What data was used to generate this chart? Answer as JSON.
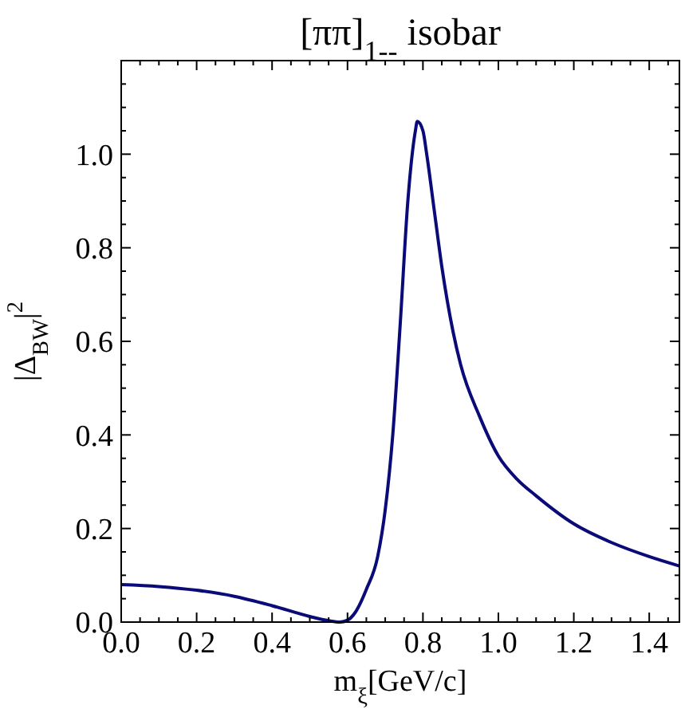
{
  "chart_data": {
    "type": "line",
    "title": "[ππ]$_{1--}$ isobar",
    "xlabel": "m$_{ξ}$[GeV/c]",
    "ylabel": "|Δ$_{BW}$|$^{2}$",
    "xlim": [
      0,
      1.48
    ],
    "ylim": [
      0,
      1.2
    ],
    "xticks": [
      {
        "value": 0,
        "label": "0.0"
      },
      {
        "value": 0.05,
        "label": null
      },
      {
        "value": 0.1,
        "label": null
      },
      {
        "value": 0.15,
        "label": null
      },
      {
        "value": 0.2,
        "label": "0.2"
      },
      {
        "value": 0.25,
        "label": null
      },
      {
        "value": 0.3,
        "label": null
      },
      {
        "value": 0.35,
        "label": null
      },
      {
        "value": 0.4,
        "label": "0.4"
      },
      {
        "value": 0.45,
        "label": null
      },
      {
        "value": 0.5,
        "label": null
      },
      {
        "value": 0.55,
        "label": null
      },
      {
        "value": 0.6,
        "label": "0.6"
      },
      {
        "value": 0.65,
        "label": null
      },
      {
        "value": 0.7,
        "label": null
      },
      {
        "value": 0.75,
        "label": null
      },
      {
        "value": 0.8,
        "label": "0.8"
      },
      {
        "value": 0.85,
        "label": null
      },
      {
        "value": 0.9,
        "label": null
      },
      {
        "value": 0.95,
        "label": null
      },
      {
        "value": 1,
        "label": "1.0"
      },
      {
        "value": 1.05,
        "label": null
      },
      {
        "value": 1.1,
        "label": null
      },
      {
        "value": 1.15,
        "label": null
      },
      {
        "value": 1.2,
        "label": "1.2"
      },
      {
        "value": 1.25,
        "label": null
      },
      {
        "value": 1.3,
        "label": null
      },
      {
        "value": 1.35,
        "label": null
      },
      {
        "value": 1.4,
        "label": "1.4"
      },
      {
        "value": 1.45,
        "label": null
      }
    ],
    "yticks": [
      {
        "value": 0,
        "label": "0.0"
      },
      {
        "value": 0.05,
        "label": null
      },
      {
        "value": 0.1,
        "label": null
      },
      {
        "value": 0.15,
        "label": null
      },
      {
        "value": 0.2,
        "label": "0.2"
      },
      {
        "value": 0.25,
        "label": null
      },
      {
        "value": 0.3,
        "label": null
      },
      {
        "value": 0.35,
        "label": null
      },
      {
        "value": 0.4,
        "label": "0.4"
      },
      {
        "value": 0.45,
        "label": null
      },
      {
        "value": 0.5,
        "label": null
      },
      {
        "value": 0.55,
        "label": null
      },
      {
        "value": 0.6,
        "label": "0.6"
      },
      {
        "value": 0.65,
        "label": null
      },
      {
        "value": 0.7,
        "label": null
      },
      {
        "value": 0.75,
        "label": null
      },
      {
        "value": 0.8,
        "label": "0.8"
      },
      {
        "value": 0.85,
        "label": null
      },
      {
        "value": 0.9,
        "label": null
      },
      {
        "value": 0.95,
        "label": null
      },
      {
        "value": 1,
        "label": "1.0"
      },
      {
        "value": 1.05,
        "label": null
      },
      {
        "value": 1.1,
        "label": null
      },
      {
        "value": 1.15,
        "label": null
      }
    ],
    "grid": false,
    "marker": "none",
    "line_style": "solid",
    "x": [
      0,
      0.1,
      0.2,
      0.3,
      0.4,
      0.5,
      0.55,
      0.58,
      0.6,
      0.62,
      0.65,
      0.68,
      0.7,
      0.72,
      0.74,
      0.76,
      0.78,
      0.785,
      0.8,
      0.81,
      0.83,
      0.85,
      0.88,
      0.9,
      0.95,
      1.0,
      1.05,
      1.1,
      1.2,
      1.3,
      1.4,
      1.48
    ],
    "series": [
      {
        "color": "#0a0a78",
        "values": [
          0.08,
          0.076,
          0.068,
          0.055,
          0.035,
          0.012,
          0.003,
          0,
          0.004,
          0.02,
          0.07,
          0.14,
          0.24,
          0.4,
          0.64,
          0.9,
          1.05,
          1.07,
          1.05,
          1.0,
          0.88,
          0.76,
          0.62,
          0.55,
          0.44,
          0.355,
          0.305,
          0.27,
          0.21,
          0.17,
          0.14,
          0.12
        ]
      }
    ]
  }
}
